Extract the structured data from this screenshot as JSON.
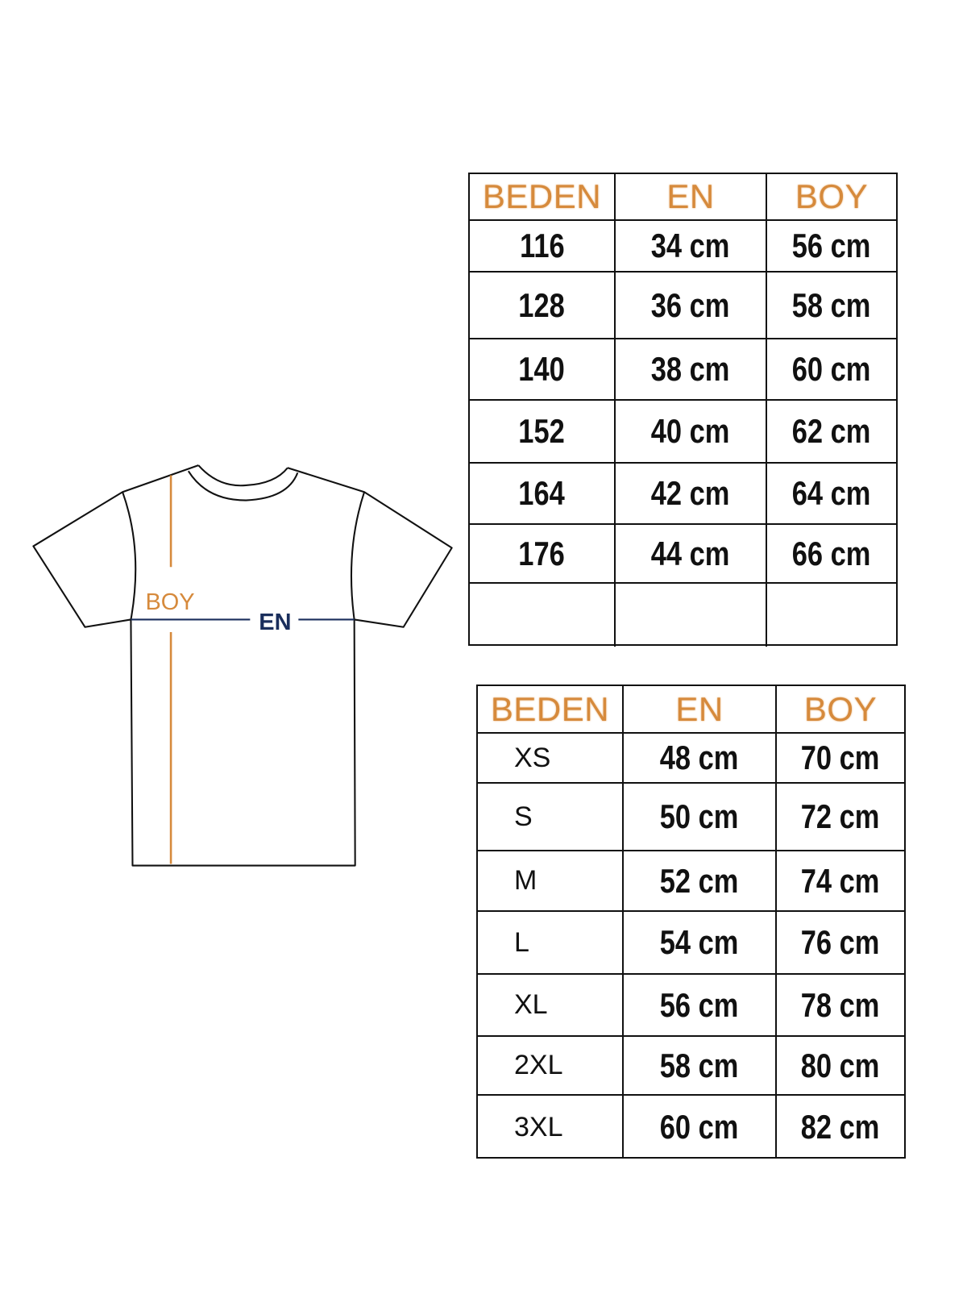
{
  "diagram": {
    "boy_label": "BOY",
    "en_label": "EN"
  },
  "colors": {
    "accent_orange": "#d68a3c",
    "navy": "#1a2e5c",
    "line": "#111111"
  },
  "kids_table": {
    "headers": [
      "BEDEN",
      "EN",
      "BOY"
    ],
    "rows": [
      [
        "116",
        "34 cm",
        "56 cm"
      ],
      [
        "128",
        "36 cm",
        "58 cm"
      ],
      [
        "140",
        "38 cm",
        "60 cm"
      ],
      [
        "152",
        "40 cm",
        "62 cm"
      ],
      [
        "164",
        "42 cm",
        "64 cm"
      ],
      [
        "176",
        "44 cm",
        "66 cm"
      ],
      [
        "",
        "",
        ""
      ]
    ]
  },
  "adult_table": {
    "headers": [
      "BEDEN",
      "EN",
      "BOY"
    ],
    "rows": [
      [
        "XS",
        "48 cm",
        "70 cm"
      ],
      [
        "S",
        "50 cm",
        "72 cm"
      ],
      [
        "M",
        "52 cm",
        "74 cm"
      ],
      [
        "L",
        "54 cm",
        "76 cm"
      ],
      [
        "XL",
        "56 cm",
        "78 cm"
      ],
      [
        "2XL",
        "58 cm",
        "80 cm"
      ],
      [
        "3XL",
        "60 cm",
        "82 cm"
      ]
    ]
  }
}
